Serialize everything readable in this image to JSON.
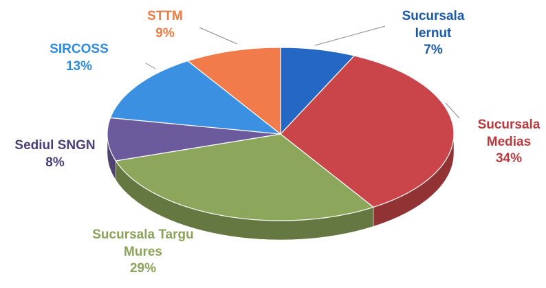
{
  "chart_data": {
    "type": "pie3d",
    "categories": [
      "Sucursala Iernut",
      "Sucursala Medias",
      "Sucursala Targu Mures",
      "Sediul SNGN",
      "SIRCOSS",
      "STTM"
    ],
    "values": [
      7,
      34,
      29,
      8,
      13,
      9
    ],
    "value_labels": [
      "7%",
      "34%",
      "29%",
      "8%",
      "13%",
      "9%"
    ],
    "colors": [
      "#2468c4",
      "#c9454a",
      "#8ca65c",
      "#6b5b9c",
      "#3b90e2",
      "#f27b4b"
    ],
    "label_colors": [
      "#1b5aa8",
      "#b83a3f",
      "#8aa35a",
      "#4a3f7a",
      "#2d8be0",
      "#f27a45"
    ]
  }
}
